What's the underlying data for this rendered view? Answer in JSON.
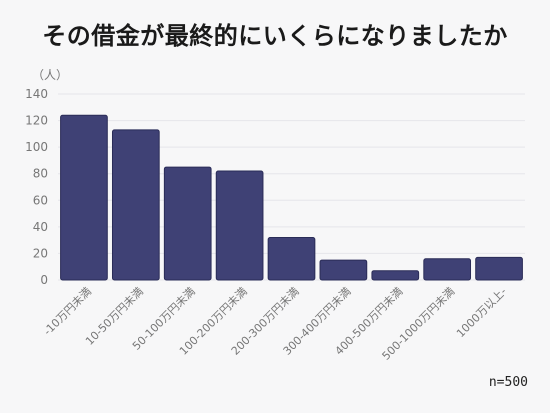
{
  "chart_data": {
    "type": "bar",
    "title": "その借金が最終的にいくらになりましたか",
    "ylabel": "（人）",
    "note": "n=500",
    "categories": [
      "-10万円未満",
      "10-50万円未満",
      "50-100万円未満",
      "100-200万円未満",
      "200-300万円未満",
      "300-400万円未満",
      "400-500万円未満",
      "500-1000万円未満",
      "1000万以上-"
    ],
    "values": [
      124,
      113,
      85,
      82,
      32,
      15,
      7,
      16,
      17
    ],
    "yticks": [
      0,
      20,
      40,
      60,
      80,
      100,
      120,
      140
    ],
    "ylim": [
      0,
      140
    ],
    "grid": true,
    "colors": {
      "bar": "#3f4175",
      "bar_stroke": "#2a2c57",
      "grid": "#e6e6ea",
      "background": "#f7f7f8"
    }
  }
}
